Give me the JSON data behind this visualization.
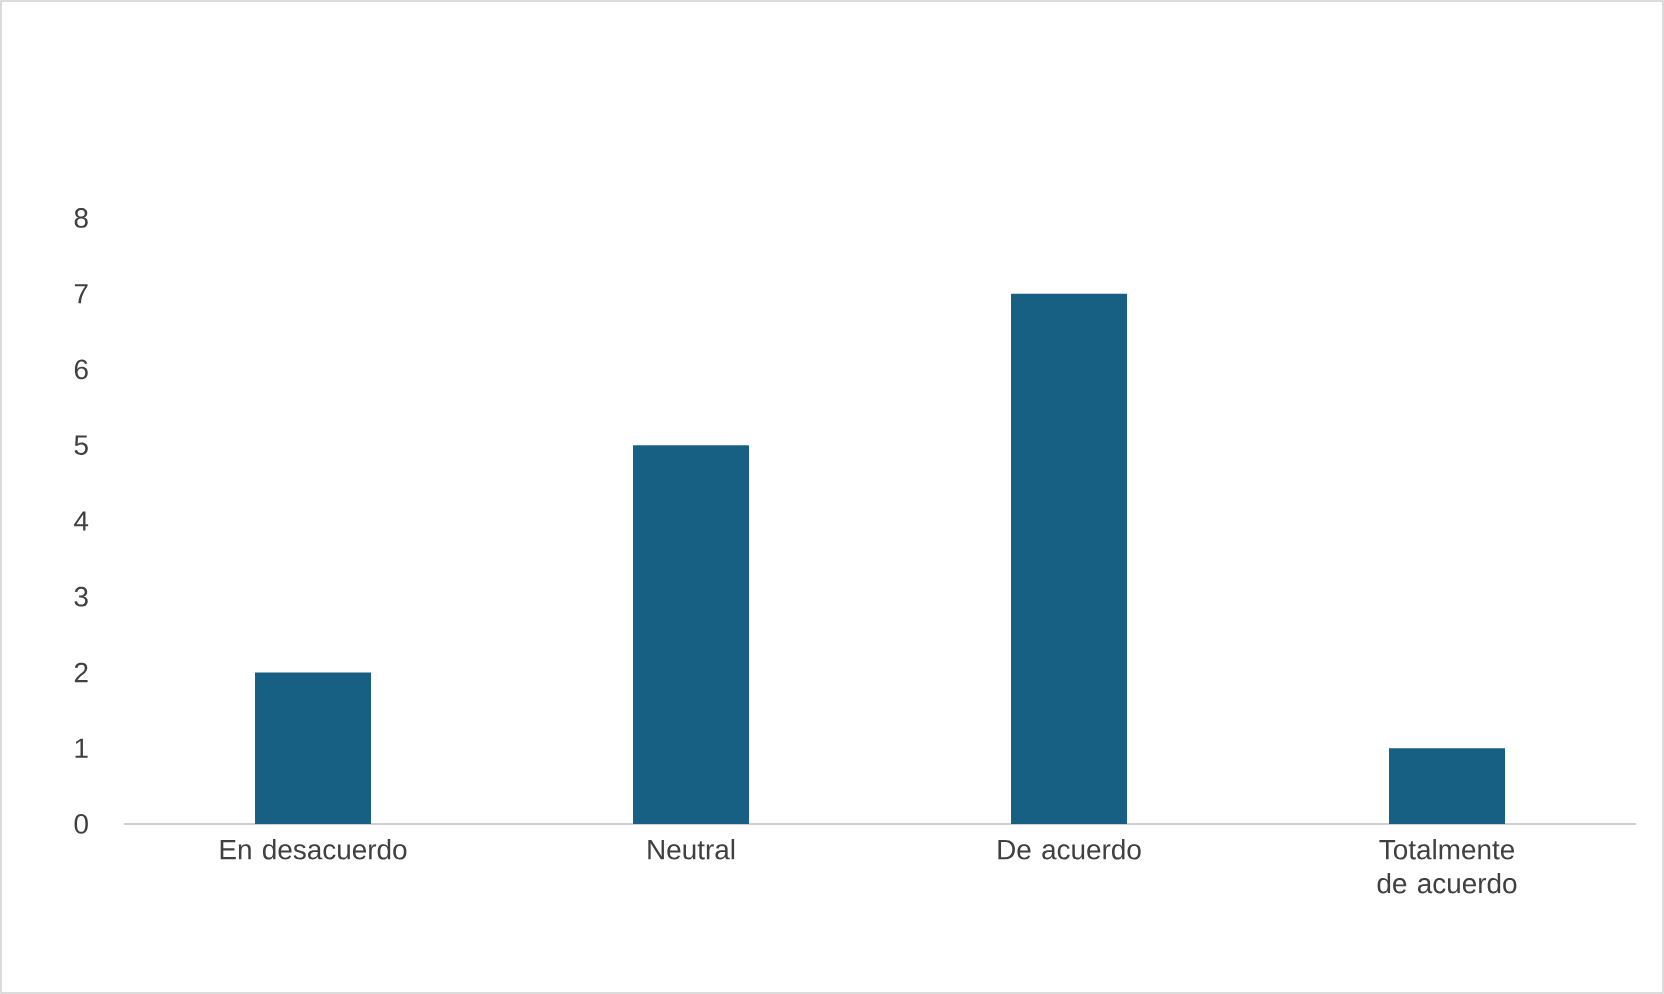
{
  "chart_data": {
    "type": "bar",
    "categories": [
      "En desacuerdo",
      "Neutral",
      "De acuerdo",
      "Totalmente de acuerdo"
    ],
    "values": [
      2,
      5,
      7,
      1
    ],
    "color": "#176083",
    "ylim": [
      0,
      8
    ],
    "yticks": [
      0,
      1,
      2,
      3,
      4,
      5,
      6,
      7,
      8
    ],
    "grid": false
  }
}
